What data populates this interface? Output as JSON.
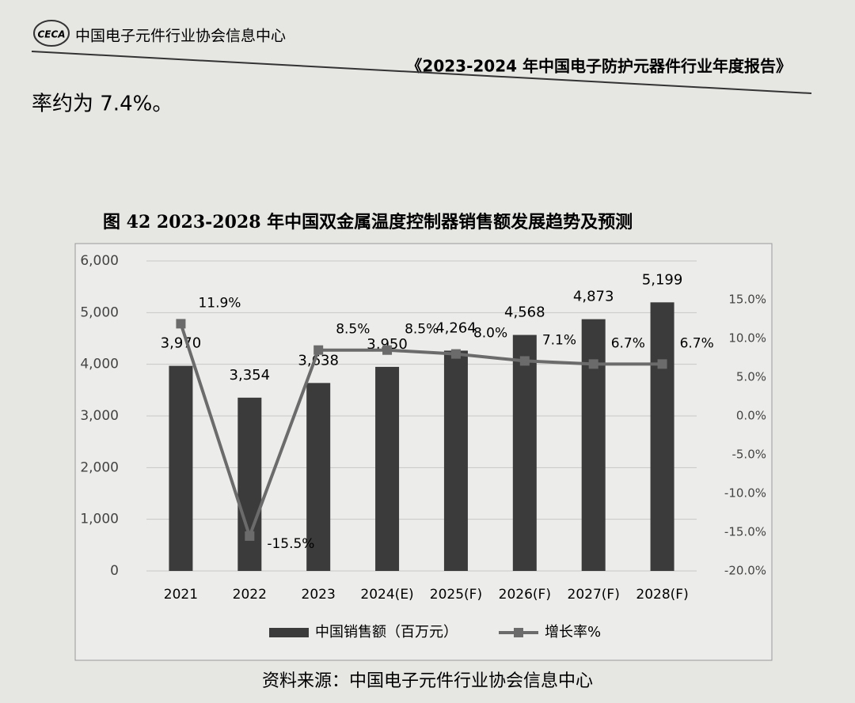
{
  "header": {
    "logo": "CECA",
    "org": "中国电子元件行业协会信息中心",
    "report": "《2023-2024 年中国电子防护元器件行业年度报告》"
  },
  "body": "率约为 7.4%。",
  "chart_data": {
    "type": "bar",
    "title": "图 42   2023-2028 年中国双金属温度控制器销售额发展趋势及预测",
    "source": "资料来源：中国电子元件行业协会信息中心",
    "categories": [
      "2021",
      "2022",
      "2023",
      "2024(E)",
      "2025(F)",
      "2026(F)",
      "2027(F)",
      "2028(F)"
    ],
    "series": [
      {
        "name": "中国销售额（百万元）",
        "color": "#3b3b3b",
        "values": [
          3970,
          3354,
          3638,
          3950,
          4264,
          4568,
          4873,
          5199
        ],
        "value_labels": [
          "3,970",
          "3,354",
          "3,638",
          "3,950",
          "4,264",
          "4,568",
          "4,873",
          "5,199"
        ]
      },
      {
        "name": "增长率%",
        "color": "#6b6b6b",
        "type": "line",
        "axis": "y2",
        "values": [
          11.9,
          -15.5,
          8.5,
          8.5,
          8.0,
          7.1,
          6.7,
          6.7
        ],
        "value_labels": [
          "11.9%",
          "-15.5%",
          "8.5%",
          "8.5%",
          "8.0%",
          "7.1%",
          "6.7%",
          "6.7%"
        ]
      }
    ],
    "ylim": [
      0,
      6000
    ],
    "yticks": [
      0,
      {
        "value": 1000,
        "label": "1,000"
      },
      {
        "value": 2000,
        "label": "2,000"
      },
      {
        "value": 3000,
        "label": "3,000"
      },
      {
        "value": 4000,
        "label": "4,000"
      },
      {
        "value": 5000,
        "label": "5,000"
      },
      {
        "value": 6000,
        "label": "6,000"
      }
    ],
    "y2lim": [
      -20,
      20
    ],
    "y2ticks": [
      {
        "value": -20,
        "label": "-20.0%"
      },
      {
        "value": -15,
        "label": "-15.0%"
      },
      {
        "value": -10,
        "label": "-10.0%"
      },
      {
        "value": -5,
        "label": "-5.0%"
      },
      {
        "value": 0,
        "label": "0.0%"
      },
      {
        "value": 5,
        "label": "5.0%"
      },
      {
        "value": 10,
        "label": "10.0%"
      },
      {
        "value": 15,
        "label": "15.0%"
      }
    ],
    "grid": true,
    "legend": "bottom"
  }
}
